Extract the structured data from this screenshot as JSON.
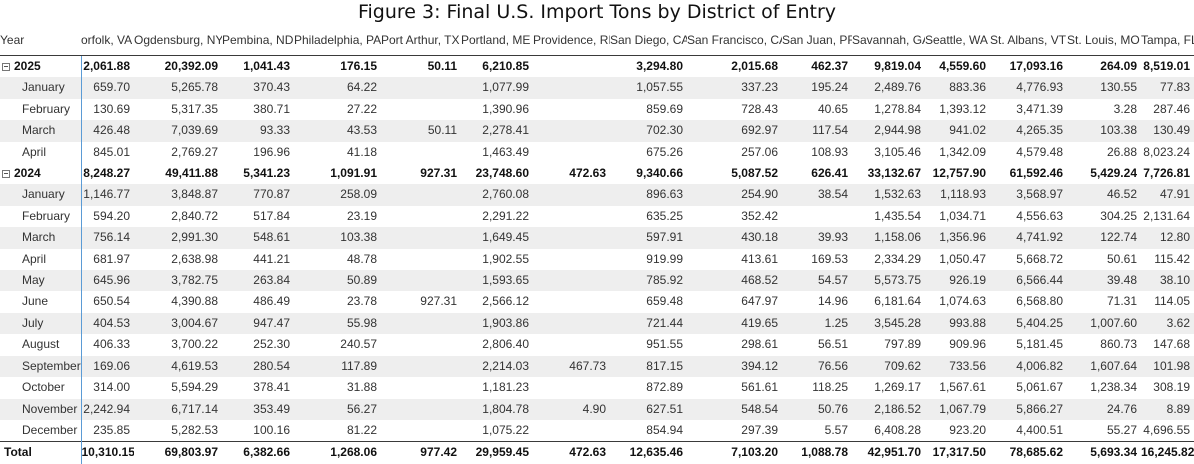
{
  "title": "Figure 3: Final U.S. Import Tons by District of Entry",
  "table": {
    "row_header_label": "Year",
    "columns": [
      "orfolk, VA",
      "Ogdensburg, NY",
      "Pembina, ND",
      "Philadelphia, PA",
      "Port Arthur, TX",
      "Portland, ME",
      "Providence, RI",
      "San Diego, CA",
      "San Francisco, CA",
      "San Juan, PR",
      "Savannah, GA",
      "Seattle, WA",
      "St. Albans, VT",
      "St. Louis, MO",
      "Tampa, FL"
    ],
    "rows": [
      {
        "label": "2025",
        "type": "year",
        "expander": "collapse-icon",
        "values": [
          "2,061.88",
          "20,392.09",
          "1,041.43",
          "176.15",
          "50.11",
          "6,210.85",
          "",
          "3,294.80",
          "2,015.68",
          "462.37",
          "9,819.04",
          "4,559.60",
          "17,093.16",
          "264.09",
          "8,519.01"
        ]
      },
      {
        "label": "January",
        "type": "month",
        "values": [
          "659.70",
          "5,265.78",
          "370.43",
          "64.22",
          "",
          "1,077.99",
          "",
          "1,057.55",
          "337.23",
          "195.24",
          "2,489.76",
          "883.36",
          "4,776.93",
          "130.55",
          "77.83"
        ]
      },
      {
        "label": "February",
        "type": "month",
        "values": [
          "130.69",
          "5,317.35",
          "380.71",
          "27.22",
          "",
          "1,390.96",
          "",
          "859.69",
          "728.43",
          "40.65",
          "1,278.84",
          "1,393.12",
          "3,471.39",
          "3.28",
          "287.46"
        ]
      },
      {
        "label": "March",
        "type": "month",
        "values": [
          "426.48",
          "7,039.69",
          "93.33",
          "43.53",
          "50.11",
          "2,278.41",
          "",
          "702.30",
          "692.97",
          "117.54",
          "2,944.98",
          "941.02",
          "4,265.35",
          "103.38",
          "130.49"
        ]
      },
      {
        "label": "April",
        "type": "month",
        "values": [
          "845.01",
          "2,769.27",
          "196.96",
          "41.18",
          "",
          "1,463.49",
          "",
          "675.26",
          "257.06",
          "108.93",
          "3,105.46",
          "1,342.09",
          "4,579.48",
          "26.88",
          "8,023.24"
        ]
      },
      {
        "label": "2024",
        "type": "year",
        "expander": "collapse-icon",
        "values": [
          "8,248.27",
          "49,411.88",
          "5,341.23",
          "1,091.91",
          "927.31",
          "23,748.60",
          "472.63",
          "9,340.66",
          "5,087.52",
          "626.41",
          "33,132.67",
          "12,757.90",
          "61,592.46",
          "5,429.24",
          "7,726.81"
        ]
      },
      {
        "label": "January",
        "type": "month",
        "values": [
          "1,146.77",
          "3,848.87",
          "770.87",
          "258.09",
          "",
          "2,760.08",
          "",
          "896.63",
          "254.90",
          "38.54",
          "1,532.63",
          "1,118.93",
          "3,568.97",
          "46.52",
          "47.91"
        ]
      },
      {
        "label": "February",
        "type": "month",
        "values": [
          "594.20",
          "2,840.72",
          "517.84",
          "23.19",
          "",
          "2,291.22",
          "",
          "635.25",
          "352.42",
          "",
          "1,435.54",
          "1,034.71",
          "4,556.63",
          "304.25",
          "2,131.64"
        ]
      },
      {
        "label": "March",
        "type": "month",
        "values": [
          "756.14",
          "2,991.30",
          "548.61",
          "103.38",
          "",
          "1,649.45",
          "",
          "597.91",
          "430.18",
          "39.93",
          "1,158.06",
          "1,356.96",
          "4,741.92",
          "122.74",
          "12.80"
        ]
      },
      {
        "label": "April",
        "type": "month",
        "values": [
          "681.97",
          "2,638.98",
          "441.21",
          "48.78",
          "",
          "1,902.55",
          "",
          "919.99",
          "413.61",
          "169.53",
          "2,334.29",
          "1,050.47",
          "5,668.72",
          "50.61",
          "115.42"
        ]
      },
      {
        "label": "May",
        "type": "month",
        "values": [
          "645.96",
          "3,782.75",
          "263.84",
          "50.89",
          "",
          "1,593.65",
          "",
          "785.92",
          "468.52",
          "54.57",
          "5,573.75",
          "926.19",
          "6,566.44",
          "39.48",
          "38.10"
        ]
      },
      {
        "label": "June",
        "type": "month",
        "values": [
          "650.54",
          "4,390.88",
          "486.49",
          "23.78",
          "927.31",
          "2,566.12",
          "",
          "659.48",
          "647.97",
          "14.96",
          "6,181.64",
          "1,074.63",
          "6,568.80",
          "71.31",
          "114.05"
        ]
      },
      {
        "label": "July",
        "type": "month",
        "values": [
          "404.53",
          "3,004.67",
          "947.47",
          "55.98",
          "",
          "1,903.86",
          "",
          "721.44",
          "419.65",
          "1.25",
          "3,545.28",
          "993.88",
          "5,404.25",
          "1,007.60",
          "3.62"
        ]
      },
      {
        "label": "August",
        "type": "month",
        "values": [
          "406.33",
          "3,700.22",
          "252.30",
          "240.57",
          "",
          "2,806.40",
          "",
          "951.55",
          "298.61",
          "56.51",
          "797.89",
          "909.96",
          "5,181.45",
          "860.73",
          "147.68"
        ]
      },
      {
        "label": "September",
        "type": "month",
        "values": [
          "169.06",
          "4,619.53",
          "280.54",
          "117.89",
          "",
          "2,214.03",
          "467.73",
          "817.15",
          "394.12",
          "76.56",
          "709.62",
          "733.56",
          "4,006.82",
          "1,607.64",
          "101.98"
        ]
      },
      {
        "label": "October",
        "type": "month",
        "values": [
          "314.00",
          "5,594.29",
          "378.41",
          "31.88",
          "",
          "1,181.23",
          "",
          "872.89",
          "561.61",
          "118.25",
          "1,269.17",
          "1,567.61",
          "5,061.67",
          "1,238.34",
          "308.19"
        ]
      },
      {
        "label": "November",
        "type": "month",
        "values": [
          "2,242.94",
          "6,717.14",
          "353.49",
          "56.27",
          "",
          "1,804.78",
          "4.90",
          "627.51",
          "548.54",
          "50.76",
          "2,186.52",
          "1,067.79",
          "5,866.27",
          "24.76",
          "8.89"
        ]
      },
      {
        "label": "December",
        "type": "month",
        "values": [
          "235.85",
          "5,282.53",
          "100.16",
          "81.22",
          "",
          "1,075.22",
          "",
          "854.94",
          "297.39",
          "5.57",
          "6,408.28",
          "923.20",
          "4,400.51",
          "55.27",
          "4,696.55"
        ]
      }
    ],
    "total": {
      "label": "Total",
      "values": [
        "10,310.15",
        "69,803.97",
        "6,382.66",
        "1,268.06",
        "977.42",
        "29,959.45",
        "472.63",
        "12,635.46",
        "7,103.20",
        "1,088.78",
        "42,951.70",
        "17,317.50",
        "78,685.62",
        "5,693.34",
        "16,245.82"
      ]
    }
  }
}
